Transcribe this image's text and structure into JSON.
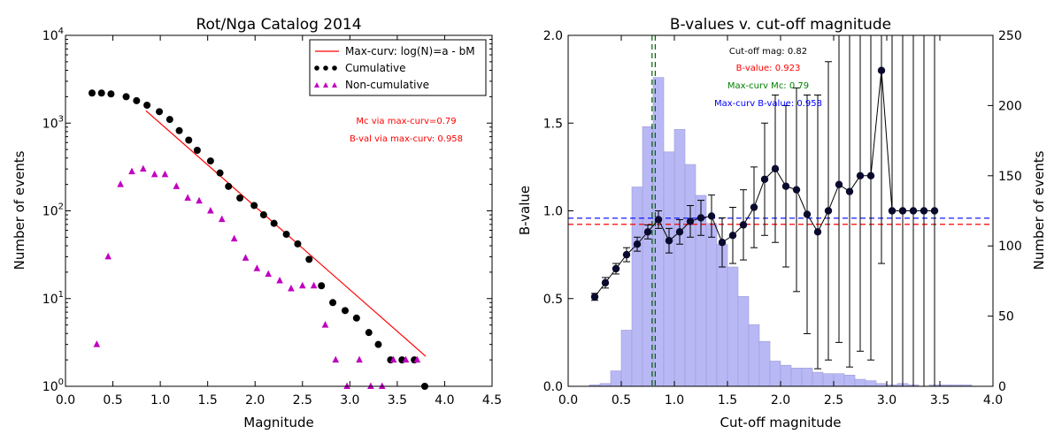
{
  "chart_data": [
    {
      "type": "scatter",
      "title": "Rot/Nga Catalog 2014",
      "xlabel": "Magnitude",
      "ylabel": "Number of events",
      "xlim": [
        0.0,
        4.5
      ],
      "ylim": [
        1,
        10000
      ],
      "yscale": "log",
      "xticks": [
        "0.0",
        "0.5",
        "1.0",
        "1.5",
        "2.0",
        "2.5",
        "3.0",
        "3.5",
        "4.0",
        "4.5"
      ],
      "yticks": [
        {
          "value": 1,
          "base": "10",
          "exp": "0"
        },
        {
          "value": 10,
          "base": "10",
          "exp": "1"
        },
        {
          "value": 100,
          "base": "10",
          "exp": "2"
        },
        {
          "value": 1000,
          "base": "10",
          "exp": "3"
        },
        {
          "value": 10000,
          "base": "10",
          "exp": "4"
        }
      ],
      "legend_position": "top-right",
      "legend": {
        "line": "Max-curv: log(N)=a - bM",
        "cumulative": "Cumulative",
        "noncumulative": "Non-cumulative"
      },
      "fit_line": {
        "x": [
          0.85,
          3.8
        ],
        "y": [
          1380,
          2.2
        ],
        "color": "#ff0000"
      },
      "series": [
        {
          "name": "Cumulative",
          "marker": "circle",
          "color": "#000000",
          "x": [
            0.28,
            0.38,
            0.48,
            0.64,
            0.75,
            0.86,
            0.99,
            1.1,
            1.2,
            1.3,
            1.39,
            1.53,
            1.63,
            1.72,
            1.84,
            1.99,
            2.09,
            2.2,
            2.33,
            2.45,
            2.57,
            2.7,
            2.82,
            2.95,
            3.07,
            3.2,
            3.3,
            3.43,
            3.55,
            3.68,
            3.79
          ],
          "y": [
            2200,
            2200,
            2150,
            2000,
            1800,
            1600,
            1350,
            1100,
            820,
            640,
            490,
            370,
            270,
            190,
            140,
            115,
            90,
            72,
            54,
            42,
            28,
            14,
            9,
            7.3,
            6,
            4.1,
            3,
            2,
            2,
            2,
            1
          ]
        },
        {
          "name": "Non-cumulative",
          "marker": "triangle",
          "color": "#c000c0",
          "x": [
            0.33,
            0.45,
            0.58,
            0.7,
            0.82,
            0.94,
            1.05,
            1.17,
            1.29,
            1.41,
            1.53,
            1.65,
            1.78,
            1.9,
            2.02,
            2.14,
            2.26,
            2.38,
            2.5,
            2.62,
            2.74,
            2.85,
            2.97,
            3.1,
            3.22,
            3.34,
            3.46,
            3.59,
            3.71
          ],
          "y": [
            3,
            30,
            200,
            280,
            300,
            260,
            260,
            190,
            140,
            130,
            100,
            80,
            48,
            29,
            22,
            19,
            16,
            13,
            14,
            14,
            5,
            2,
            1,
            2,
            1,
            1,
            2,
            2,
            2
          ]
        }
      ],
      "annotations": [
        {
          "text": "Mc via max-curv=0.79",
          "color": "#ff0000"
        },
        {
          "text": "B-val via max-curv: 0.958",
          "color": "#ff0000"
        }
      ]
    },
    {
      "type": "line",
      "title": "B-values v. cut-off magnitude",
      "xlabel": "Cut-off magnitude",
      "ylabel": "B-value",
      "y2label": "Number of events",
      "xlim": [
        0.0,
        4.0
      ],
      "ylim": [
        0.0,
        2.0
      ],
      "y2lim": [
        0,
        250
      ],
      "xticks": [
        "0.0",
        "0.5",
        "1.0",
        "1.5",
        "2.0",
        "2.5",
        "3.0",
        "3.5",
        "4.0"
      ],
      "yticks": [
        "0.0",
        "0.5",
        "1.0",
        "1.5",
        "2.0"
      ],
      "y2ticks": [
        "0",
        "50",
        "100",
        "150",
        "200",
        "250"
      ],
      "histogram": {
        "bin_width": 0.1,
        "left_edges": [
          0.2,
          0.3,
          0.4,
          0.5,
          0.6,
          0.7,
          0.8,
          0.9,
          1.0,
          1.1,
          1.2,
          1.3,
          1.4,
          1.5,
          1.6,
          1.7,
          1.8,
          1.9,
          2.0,
          2.1,
          2.2,
          2.3,
          2.4,
          2.5,
          2.6,
          2.7,
          2.8,
          2.9,
          3.0,
          3.1,
          3.2,
          3.3,
          3.4,
          3.5,
          3.6,
          3.7
        ],
        "counts": [
          1,
          2,
          11,
          40,
          142,
          185,
          220,
          167,
          183,
          158,
          136,
          116,
          101,
          85,
          64,
          44,
          32,
          18,
          15,
          13,
          13,
          10,
          9,
          9,
          8,
          5,
          4,
          2,
          1,
          2,
          1,
          0,
          1,
          1,
          1,
          1
        ],
        "color": "#b8b8f5"
      },
      "bvalue_series": {
        "name": "B-value",
        "color": "#000000",
        "x": [
          0.25,
          0.35,
          0.45,
          0.55,
          0.65,
          0.75,
          0.85,
          0.95,
          1.05,
          1.15,
          1.25,
          1.35,
          1.45,
          1.55,
          1.65,
          1.75,
          1.85,
          1.95,
          2.05,
          2.15,
          2.25,
          2.35,
          2.45,
          2.55,
          2.65,
          2.75,
          2.85,
          2.95,
          3.05,
          3.15,
          3.25,
          3.35,
          3.45
        ],
        "y": [
          0.51,
          0.59,
          0.67,
          0.75,
          0.81,
          0.88,
          0.95,
          0.83,
          0.88,
          0.94,
          0.96,
          0.97,
          0.82,
          0.86,
          0.92,
          1.02,
          1.18,
          1.24,
          1.14,
          1.12,
          0.98,
          0.88,
          1.0,
          1.15,
          1.11,
          1.2,
          1.2,
          1.8,
          1.0,
          1.0,
          1.0,
          1.0,
          1.0
        ],
        "yerr": [
          0.02,
          0.03,
          0.03,
          0.04,
          0.04,
          0.04,
          0.05,
          0.07,
          0.07,
          0.09,
          0.1,
          0.12,
          0.14,
          0.16,
          0.2,
          0.23,
          0.32,
          0.42,
          0.46,
          0.58,
          0.68,
          0.78,
          0.85,
          0.9,
          1.0,
          1.0,
          1.05,
          1.1,
          1.1,
          1.1,
          1.1,
          1.1,
          1.1
        ]
      },
      "hlines": [
        {
          "y": 0.958,
          "color": "#0000ff",
          "style": "dashed"
        },
        {
          "y": 0.923,
          "color": "#ff0000",
          "style": "dashed"
        }
      ],
      "vlines": [
        {
          "x": 0.79,
          "color": "#006400",
          "style": "dashed"
        },
        {
          "x": 0.82,
          "color": "#006400",
          "style": "dashed"
        }
      ],
      "annotations": [
        {
          "text": "Cut-off mag: 0.82",
          "color": "#000000"
        },
        {
          "text": "B-value: 0.923",
          "color": "#ff0000"
        },
        {
          "text": "Max-curv Mc: 0.79",
          "color": "#008000"
        },
        {
          "text": "Max-curv B-value: 0.958",
          "color": "#0000ff"
        }
      ]
    }
  ]
}
